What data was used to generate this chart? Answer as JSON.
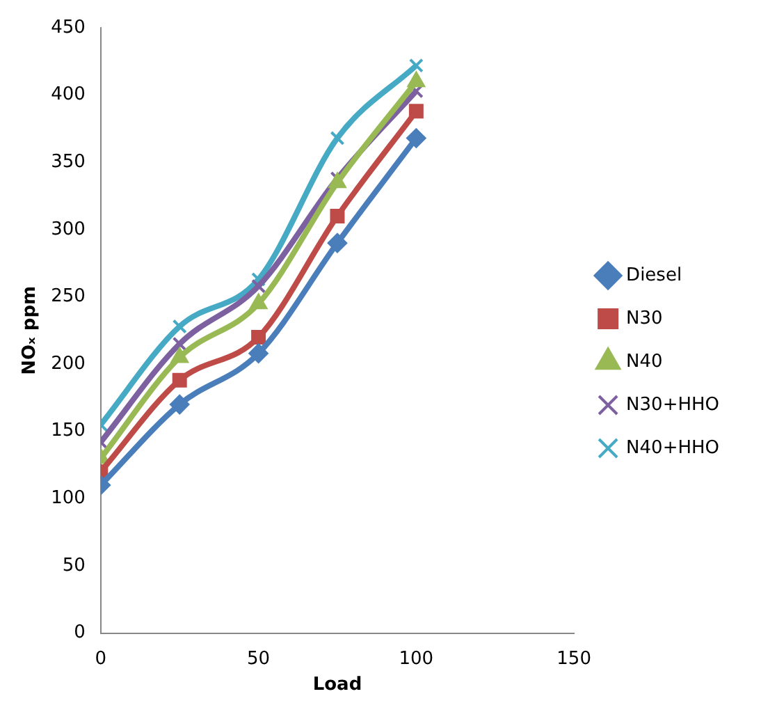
{
  "chart_data": {
    "type": "line",
    "xlabel": "Load",
    "ylabel": "NOₓ ppm",
    "x": [
      0,
      25,
      50,
      75,
      100
    ],
    "series": [
      {
        "name": "Diesel",
        "color": "#4a7ebb",
        "marker": "diamond",
        "values": [
          110,
          170,
          208,
          290,
          368
        ]
      },
      {
        "name": "N30",
        "color": "#be4b48",
        "marker": "square",
        "values": [
          120,
          188,
          220,
          310,
          388
        ]
      },
      {
        "name": "N40",
        "color": "#98b954",
        "marker": "triangle",
        "values": [
          130,
          205,
          245,
          335,
          410
        ]
      },
      {
        "name": "N30+HHO",
        "color": "#7d60a0",
        "marker": "cross",
        "values": [
          142,
          215,
          258,
          338,
          403
        ]
      },
      {
        "name": "N40+HHO",
        "color": "#46aac5",
        "marker": "cross",
        "values": [
          155,
          228,
          263,
          368,
          422
        ]
      }
    ],
    "xlim": [
      0,
      150
    ],
    "xticks": [
      0,
      50,
      100,
      150
    ],
    "ylim": [
      0,
      450
    ],
    "yticks": [
      0,
      50,
      100,
      150,
      200,
      250,
      300,
      350,
      400,
      450
    ],
    "grid": false,
    "legend": "right"
  }
}
